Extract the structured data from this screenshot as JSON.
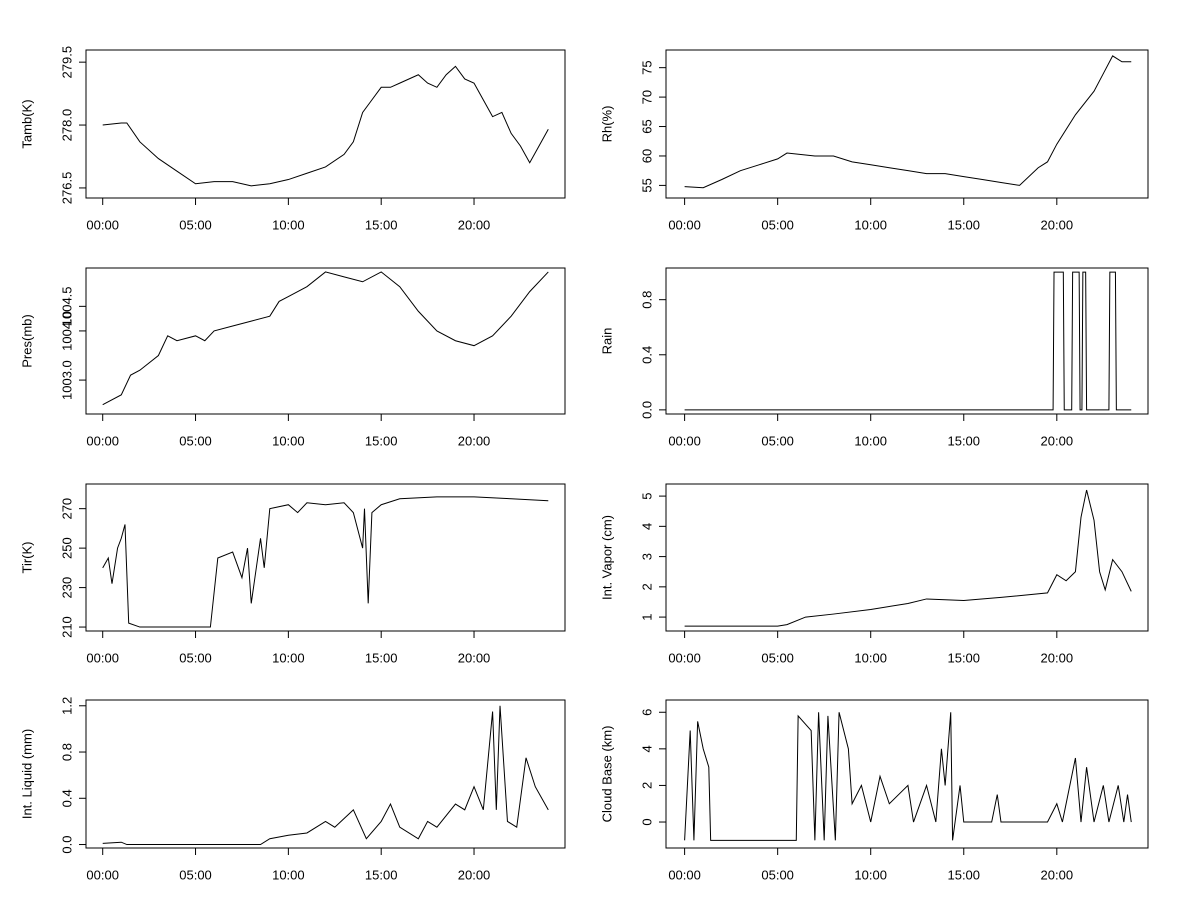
{
  "chart_data": [
    {
      "type": "line",
      "ylabel": "Tamb(K)",
      "color": "#000000",
      "x": [
        0,
        1,
        1.3,
        2,
        3,
        4,
        5,
        6,
        7,
        8,
        9,
        10,
        11,
        12,
        13,
        13.5,
        14,
        14.5,
        15,
        15.5,
        16,
        17,
        17.5,
        18,
        18.5,
        19,
        19.5,
        20,
        20.5,
        21,
        21.5,
        22,
        22.5,
        23,
        23.5,
        24
      ],
      "values": [
        278,
        278.05,
        278.05,
        277.6,
        277.2,
        276.9,
        276.6,
        276.65,
        276.65,
        276.55,
        276.6,
        276.7,
        276.85,
        277,
        277.3,
        277.6,
        278.3,
        278.6,
        278.9,
        278.9,
        279,
        279.2,
        279,
        278.9,
        279.2,
        279.4,
        279.1,
        279,
        278.6,
        278.2,
        278.3,
        277.8,
        277.5,
        277.1,
        277.5,
        277.9
      ],
      "xlim": [
        -0.9,
        24.9
      ],
      "xticks": [
        {
          "value": 0,
          "label": "00:00"
        },
        {
          "value": 5,
          "label": "05:00"
        },
        {
          "value": 10,
          "label": "10:00"
        },
        {
          "value": 15,
          "label": "15:00"
        },
        {
          "value": 20,
          "label": "20:00"
        }
      ],
      "ylim": [
        276.26,
        279.79
      ],
      "yticks": [
        276.5,
        {
          "value": 278,
          "label": "278.0"
        },
        279.5
      ]
    },
    {
      "type": "line",
      "ylabel": "Rh(%)",
      "color": "#000000",
      "x": [
        0,
        1,
        2,
        3,
        4,
        5,
        5.5,
        7,
        8,
        9,
        10,
        11,
        12,
        13,
        14,
        15,
        16,
        17,
        18,
        19,
        19.5,
        20,
        21,
        22,
        22.5,
        23,
        23.5,
        24
      ],
      "values": [
        54.8,
        54.6,
        56,
        57.5,
        58.5,
        59.5,
        60.5,
        60,
        60,
        59,
        58.5,
        58,
        57.5,
        57,
        57,
        56.5,
        56,
        55.5,
        55,
        58,
        59,
        62,
        67,
        71,
        74,
        77,
        76,
        76
      ],
      "xlim": [
        -1,
        24.9
      ],
      "xticks": [
        {
          "value": 0,
          "label": "00:00"
        },
        {
          "value": 5,
          "label": "05:00"
        },
        {
          "value": 10,
          "label": "10:00"
        },
        {
          "value": 15,
          "label": "15:00"
        },
        {
          "value": 20,
          "label": "20:00"
        }
      ],
      "ylim": [
        52.86,
        78
      ],
      "yticks": [
        55,
        60,
        65,
        70,
        75
      ]
    },
    {
      "type": "line",
      "ylabel": "Pres(mb)",
      "color": "#000000",
      "x": [
        0,
        1,
        1.5,
        2,
        3,
        3.5,
        4,
        5,
        5.5,
        6,
        7,
        8,
        9,
        9.5,
        10,
        11,
        12,
        13,
        14,
        15,
        16,
        17,
        18,
        19,
        20,
        21,
        22,
        23,
        24
      ],
      "values": [
        1002.5,
        1002.7,
        1003.1,
        1003.2,
        1003.5,
        1003.9,
        1003.8,
        1003.9,
        1003.8,
        1004,
        1004.1,
        1004.2,
        1004.3,
        1004.6,
        1004.7,
        1004.9,
        1005.2,
        1005.1,
        1005,
        1005.2,
        1004.9,
        1004.4,
        1004,
        1003.8,
        1003.7,
        1003.9,
        1004.3,
        1004.8,
        1005.2
      ],
      "xlim": [
        -0.9,
        24.9
      ],
      "xticks": [
        {
          "value": 0,
          "label": "00:00"
        },
        {
          "value": 5,
          "label": "05:00"
        },
        {
          "value": 10,
          "label": "10:00"
        },
        {
          "value": 15,
          "label": "15:00"
        },
        {
          "value": 20,
          "label": "20:00"
        }
      ],
      "ylim": [
        1002.31,
        1005.28
      ],
      "yticks": [
        {
          "value": 1003,
          "label": "1003.0"
        },
        {
          "value": 1004,
          "label": "1004.0"
        },
        1004.5
      ]
    },
    {
      "type": "line",
      "ylabel": "Rain",
      "color": "#000000",
      "x": [
        0,
        19.8,
        19.85,
        20.35,
        20.4,
        20.8,
        20.85,
        21.2,
        21.25,
        21.35,
        21.4,
        21.55,
        21.6,
        22.8,
        22.85,
        23.15,
        23.2,
        24
      ],
      "values": [
        0,
        0,
        1,
        1,
        0,
        0,
        1,
        1,
        0,
        0,
        1,
        1,
        0,
        0,
        1,
        1,
        0,
        0
      ],
      "xlim": [
        -1,
        24.9
      ],
      "xticks": [
        {
          "value": 0,
          "label": "00:00"
        },
        {
          "value": 5,
          "label": "05:00"
        },
        {
          "value": 10,
          "label": "10:00"
        },
        {
          "value": 15,
          "label": "15:00"
        },
        {
          "value": 20,
          "label": "20:00"
        }
      ],
      "ylim": [
        -0.03,
        1.03
      ],
      "yticks": [
        {
          "value": 0,
          "label": "0.0"
        },
        0.4,
        0.8
      ]
    },
    {
      "type": "line",
      "ylabel": "Tir(K)",
      "color": "#000000",
      "x": [
        0,
        0.3,
        0.5,
        0.8,
        1,
        1.2,
        1.4,
        2,
        5.8,
        6.2,
        7,
        7.5,
        7.8,
        8,
        8.5,
        8.7,
        9,
        10,
        10.5,
        11,
        12,
        13,
        13.5,
        14,
        14.1,
        14.3,
        14.5,
        15,
        16,
        18,
        20,
        22,
        24
      ],
      "values": [
        240,
        245,
        232,
        250,
        255,
        262,
        212,
        210,
        210,
        245,
        248,
        235,
        250,
        222,
        255,
        240,
        270,
        272,
        268,
        273,
        272,
        273,
        268,
        250,
        270,
        222,
        268,
        272,
        275,
        276,
        276,
        275,
        274
      ],
      "xlim": [
        -0.9,
        24.9
      ],
      "xticks": [
        {
          "value": 0,
          "label": "00:00"
        },
        {
          "value": 5,
          "label": "05:00"
        },
        {
          "value": 10,
          "label": "10:00"
        },
        {
          "value": 15,
          "label": "15:00"
        },
        {
          "value": 20,
          "label": "20:00"
        }
      ],
      "ylim": [
        208,
        282.5
      ],
      "yticks": [
        210,
        230,
        250,
        270
      ]
    },
    {
      "type": "line",
      "ylabel": "Int. Vapor (cm)",
      "color": "#000000",
      "x": [
        0,
        5,
        5.5,
        6.5,
        8,
        10,
        12,
        13,
        15,
        17,
        19.5,
        20,
        20.5,
        21,
        21.3,
        21.6,
        22,
        22.3,
        22.6,
        23,
        23.5,
        24
      ],
      "values": [
        0.7,
        0.7,
        0.75,
        1,
        1.1,
        1.25,
        1.45,
        1.6,
        1.55,
        1.65,
        1.8,
        2.4,
        2.2,
        2.5,
        4.3,
        5.2,
        4.2,
        2.5,
        1.9,
        2.9,
        2.5,
        1.85
      ],
      "xlim": [
        -1,
        24.9
      ],
      "xticks": [
        {
          "value": 0,
          "label": "00:00"
        },
        {
          "value": 5,
          "label": "05:00"
        },
        {
          "value": 10,
          "label": "10:00"
        },
        {
          "value": 15,
          "label": "15:00"
        },
        {
          "value": 20,
          "label": "20:00"
        }
      ],
      "ylim": [
        0.54,
        5.4
      ],
      "yticks": [
        1,
        2,
        3,
        4,
        5
      ]
    },
    {
      "type": "line",
      "ylabel": "Int. Liquid (mm)",
      "color": "#000000",
      "x": [
        0,
        1,
        1.3,
        8.5,
        9,
        10,
        11,
        12,
        12.5,
        13.5,
        14.2,
        15,
        15.5,
        16,
        17,
        17.5,
        18,
        19,
        19.5,
        20,
        20.5,
        21,
        21.2,
        21.4,
        21.8,
        22.3,
        22.8,
        23.3,
        24
      ],
      "values": [
        0.01,
        0.02,
        0,
        0,
        0.05,
        0.08,
        0.1,
        0.2,
        0.15,
        0.3,
        0.05,
        0.2,
        0.35,
        0.15,
        0.05,
        0.2,
        0.15,
        0.35,
        0.3,
        0.5,
        0.3,
        1.15,
        0.3,
        1.2,
        0.2,
        0.15,
        0.75,
        0.5,
        0.3
      ],
      "xlim": [
        -0.9,
        24.9
      ],
      "xticks": [
        {
          "value": 0,
          "label": "00:00"
        },
        {
          "value": 5,
          "label": "05:00"
        },
        {
          "value": 10,
          "label": "10:00"
        },
        {
          "value": 15,
          "label": "15:00"
        },
        {
          "value": 20,
          "label": "20:00"
        }
      ],
      "ylim": [
        -0.03,
        1.25
      ],
      "yticks": [
        {
          "value": 0,
          "label": "0.0"
        },
        0.4,
        0.8,
        1.2
      ]
    },
    {
      "type": "line",
      "ylabel": "Cloud Base (km)",
      "color": "#000000",
      "x": [
        0,
        0.3,
        0.5,
        0.7,
        1,
        1.3,
        1.4,
        6,
        6.1,
        6.8,
        7,
        7.2,
        7.5,
        7.7,
        8.1,
        8.3,
        8.8,
        9,
        9.5,
        10,
        10.5,
        11,
        12,
        12.3,
        13,
        13.5,
        13.8,
        14,
        14.3,
        14.4,
        14.8,
        15,
        16.5,
        16.8,
        17,
        19.5,
        20,
        20.3,
        21,
        21.3,
        21.6,
        22,
        22.5,
        22.8,
        23.3,
        23.6,
        23.8,
        24
      ],
      "values": [
        -1,
        5,
        -1,
        5.5,
        4,
        3,
        -1,
        -1,
        5.8,
        5,
        -1,
        6,
        -1,
        5.8,
        -1,
        6,
        4,
        1,
        2,
        0,
        2.5,
        1,
        2,
        0,
        2,
        0,
        4,
        2,
        6,
        -1,
        2,
        0,
        0,
        1.5,
        0,
        0,
        1,
        0,
        3.5,
        0,
        3,
        0,
        2,
        0,
        2,
        0,
        1.5,
        0
      ],
      "xlim": [
        -1,
        24.9
      ],
      "xticks": [
        {
          "value": 0,
          "label": "00:00"
        },
        {
          "value": 5,
          "label": "05:00"
        },
        {
          "value": 10,
          "label": "10:00"
        },
        {
          "value": 15,
          "label": "15:00"
        },
        {
          "value": 20,
          "label": "20:00"
        }
      ],
      "ylim": [
        -1.42,
        6.67
      ],
      "yticks": [
        0,
        2,
        4,
        6
      ]
    }
  ]
}
